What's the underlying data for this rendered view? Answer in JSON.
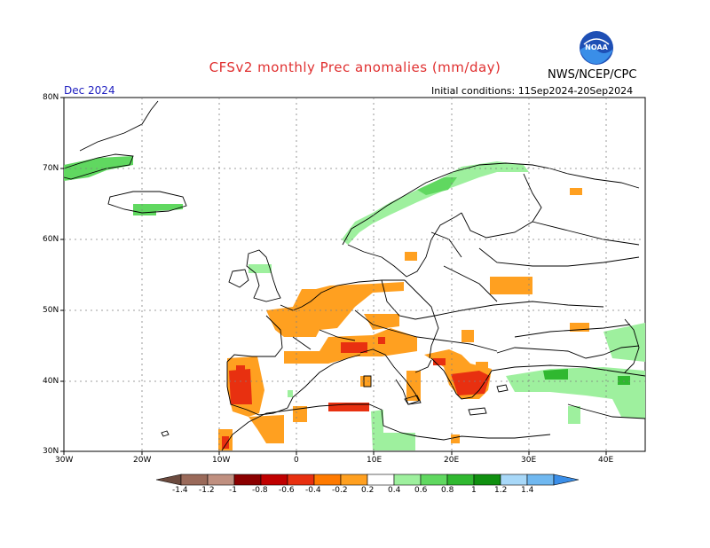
{
  "title": "CFSv2 monthly Prec anomalies (mm/day)",
  "month": "Dec 2024",
  "initial_conditions": "Initial conditions: 11Sep2024-20Sep2024",
  "agency": "NWS/NCEP/CPC",
  "logo_text": "NOAA",
  "lat_labels": [
    "80N",
    "70N",
    "60N",
    "50N",
    "40N",
    "30N"
  ],
  "lon_labels": [
    "30W",
    "20W",
    "10W",
    "0",
    "10E",
    "20E",
    "30E",
    "40E"
  ],
  "colorbar": {
    "labels": [
      "-1.4",
      "-1.2",
      "-1",
      "-0.8",
      "-0.6",
      "-0.4",
      "-0.2",
      "0.2",
      "0.4",
      "0.6",
      "0.8",
      "1",
      "1.2",
      "1.4"
    ],
    "colors": [
      "#6b4a3e",
      "#9a6a5a",
      "#c09080",
      "#8b0000",
      "#c00000",
      "#e83010",
      "#ff7a00",
      "#ffa020",
      "#ffffff",
      "#9ef09e",
      "#60d860",
      "#30b830",
      "#109010",
      "#a8d8f8",
      "#70b8f0",
      "#3a8ee8"
    ]
  },
  "anomaly_colors": {
    "light_orange": "#ffa020",
    "orange": "#ff8c00",
    "red": "#e83010",
    "light_green": "#9ef09e",
    "green": "#60d860",
    "dark_green": "#30b830"
  }
}
